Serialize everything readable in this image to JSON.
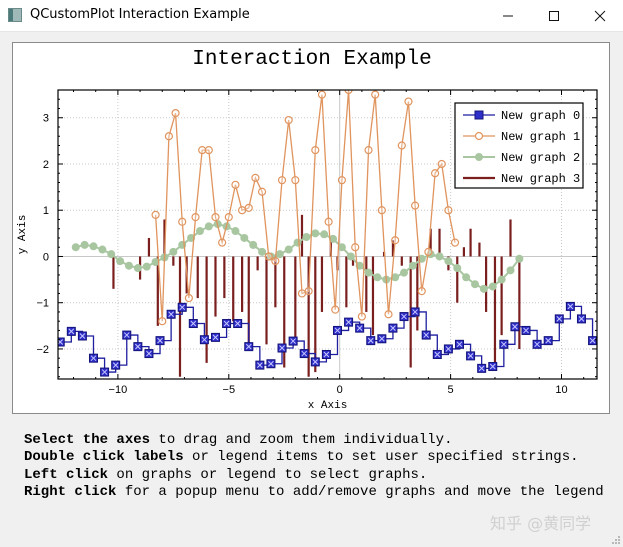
{
  "window": {
    "title": "QCustomPlot Interaction Example",
    "controls": {
      "minimize": "—",
      "maximize": "☐",
      "close": "✕"
    }
  },
  "plot": {
    "title": "Interaction Example"
  },
  "instructions": [
    {
      "bold": "Select the axes",
      "rest": " to drag and zoom them individually."
    },
    {
      "bold": "Double click labels",
      "rest": " or legend items to set user specified strings."
    },
    {
      "bold": "Left click",
      "rest": " on graphs or legend to select graphs."
    },
    {
      "bold": "Right click",
      "rest": " for a popup menu to add/remove graphs and move the legend"
    }
  ],
  "watermark": "知乎 @黄同学",
  "chart_data": {
    "type": "line",
    "title": "Interaction Example",
    "xlabel": "x Axis",
    "ylabel": "y Axis",
    "xlim": [
      -12.7,
      11.6
    ],
    "ylim": [
      -2.65,
      3.6
    ],
    "xticks": [
      -10,
      -5,
      0,
      5,
      10
    ],
    "yticks": [
      -2,
      -1,
      0,
      1,
      2,
      3
    ],
    "grid": true,
    "legend_position": "top-right",
    "legend": [
      "New graph 0",
      "New graph 1",
      "New graph 2",
      "New graph 3"
    ],
    "series": [
      {
        "name": "New graph 0",
        "style": "step-left line with square-cross markers",
        "color": "#1f1fa0",
        "x": [
          -12.6,
          -12.1,
          -11.6,
          -11.1,
          -10.6,
          -10.1,
          -9.6,
          -9.1,
          -8.6,
          -8.1,
          -7.6,
          -7.1,
          -6.6,
          -6.1,
          -5.6,
          -5.1,
          -4.6,
          -4.1,
          -3.6,
          -3.1,
          -2.6,
          -2.1,
          -1.6,
          -1.1,
          -0.6,
          -0.1,
          0.4,
          0.9,
          1.4,
          1.9,
          2.4,
          2.9,
          3.4,
          3.9,
          4.4,
          4.9,
          5.4,
          5.9,
          6.4,
          6.9,
          7.4,
          7.9,
          8.4,
          8.9,
          9.4,
          9.9,
          10.4,
          10.9,
          11.4
        ],
        "y": [
          -1.85,
          -1.62,
          -1.72,
          -2.2,
          -2.5,
          -2.35,
          -1.7,
          -1.95,
          -2.1,
          -1.82,
          -1.25,
          -1.1,
          -1.45,
          -1.8,
          -1.75,
          -1.45,
          -1.45,
          -1.95,
          -2.35,
          -2.32,
          -1.98,
          -1.83,
          -2.1,
          -2.28,
          -2.12,
          -1.6,
          -1.42,
          -1.55,
          -1.82,
          -1.78,
          -1.55,
          -1.3,
          -1.2,
          -1.7,
          -2.12,
          -2.0,
          -1.9,
          -2.15,
          -2.42,
          -2.38,
          -1.9,
          -1.52,
          -1.6,
          -1.9,
          -1.82,
          -1.35,
          -1.08,
          -1.35,
          -1.82
        ]
      },
      {
        "name": "New graph 1",
        "style": "line with circle markers",
        "color": "#e0945e",
        "x": [
          -8.3,
          -8.0,
          -7.7,
          -7.4,
          -7.1,
          -6.8,
          -6.5,
          -6.2,
          -5.9,
          -5.6,
          -5.3,
          -5.0,
          -4.7,
          -4.4,
          -4.1,
          -3.8,
          -3.5,
          -3.2,
          -2.9,
          -2.6,
          -2.3,
          -2.0,
          -1.7,
          -1.4,
          -1.1,
          -0.8,
          -0.5,
          -0.2,
          0.1,
          0.4,
          0.7,
          1.0,
          1.3,
          1.6,
          1.9,
          2.2,
          2.5,
          2.8,
          3.1,
          3.4,
          3.7,
          4.0,
          4.3,
          4.6,
          4.9,
          5.2
        ],
        "y": [
          0.9,
          -1.4,
          2.6,
          3.1,
          0.75,
          -0.9,
          0.85,
          2.3,
          2.3,
          0.85,
          0.3,
          0.85,
          1.55,
          1.0,
          1.05,
          1.7,
          1.4,
          0.0,
          -0.1,
          1.65,
          2.95,
          1.65,
          -0.8,
          -0.75,
          2.3,
          3.5,
          0.75,
          -1.15,
          1.65,
          3.6,
          0.2,
          -1.3,
          2.3,
          3.5,
          1.0,
          -1.25,
          0.35,
          2.4,
          3.35,
          1.1,
          -0.75,
          0.1,
          1.8,
          2.0,
          1.0,
          0.3
        ]
      },
      {
        "name": "New graph 2",
        "style": "line with filled circle markers",
        "color": "#a8c6a0",
        "x": [
          -11.9,
          -11.5,
          -11.1,
          -10.7,
          -10.3,
          -9.9,
          -9.5,
          -9.1,
          -8.7,
          -8.3,
          -7.9,
          -7.5,
          -7.1,
          -6.7,
          -6.3,
          -5.9,
          -5.5,
          -5.1,
          -4.7,
          -4.3,
          -3.9,
          -3.5,
          -3.1,
          -2.7,
          -2.3,
          -1.9,
          -1.5,
          -1.1,
          -0.7,
          -0.3,
          0.1,
          0.5,
          0.9,
          1.3,
          1.7,
          2.1,
          2.5,
          2.9,
          3.3,
          3.7,
          4.1,
          4.5,
          4.9,
          5.3,
          5.7,
          6.1,
          6.5,
          6.9,
          7.3,
          7.7,
          8.1
        ],
        "y": [
          0.2,
          0.25,
          0.22,
          0.15,
          0.05,
          -0.1,
          -0.2,
          -0.25,
          -0.22,
          -0.12,
          -0.02,
          0.1,
          0.25,
          0.4,
          0.55,
          0.65,
          0.7,
          0.65,
          0.55,
          0.4,
          0.25,
          0.1,
          0.0,
          0.05,
          0.15,
          0.3,
          0.42,
          0.5,
          0.48,
          0.38,
          0.2,
          0.0,
          -0.2,
          -0.35,
          -0.45,
          -0.5,
          -0.45,
          -0.35,
          -0.2,
          -0.05,
          0.05,
          0.0,
          -0.1,
          -0.25,
          -0.45,
          -0.6,
          -0.7,
          -0.65,
          -0.5,
          -0.3,
          -0.05
        ]
      },
      {
        "name": "New graph 3",
        "style": "impulse",
        "color": "#7a1e1e",
        "x": [
          -10.2,
          -9.0,
          -8.6,
          -8.2,
          -7.9,
          -7.5,
          -7.2,
          -6.9,
          -6.4,
          -6.0,
          -5.6,
          -5.2,
          -4.8,
          -4.4,
          -4.1,
          -3.7,
          -3.3,
          -2.9,
          -2.5,
          -2.0,
          -1.7,
          -1.4,
          -1.1,
          -0.8,
          -0.4,
          -0.1,
          0.3,
          0.6,
          1.2,
          1.5,
          2.0,
          2.4,
          2.8,
          3.2,
          3.5,
          4.1,
          4.5,
          4.9,
          5.3,
          5.6,
          5.9,
          6.3,
          6.6,
          7.0,
          7.3,
          7.7,
          8.1
        ],
        "y": [
          -0.7,
          -0.5,
          0.4,
          -1.5,
          0.8,
          -0.2,
          -2.6,
          -0.8,
          -0.9,
          -2.3,
          -1.3,
          -0.9,
          -1.4,
          -1.2,
          -2.0,
          -0.3,
          -1.9,
          -1.1,
          -2.4,
          -1.8,
          0.9,
          -2.6,
          -2.5,
          -1.2,
          0.4,
          -0.3,
          -1.1,
          -0.2,
          -1.2,
          -1.7,
          0.1,
          0.35,
          -0.2,
          -2.4,
          -1.6,
          0.6,
          0.6,
          -0.3,
          -1.0,
          0.2,
          0.6,
          0.3,
          -1.2,
          -2.3,
          -1.7,
          0.8,
          -2.0
        ]
      }
    ]
  }
}
